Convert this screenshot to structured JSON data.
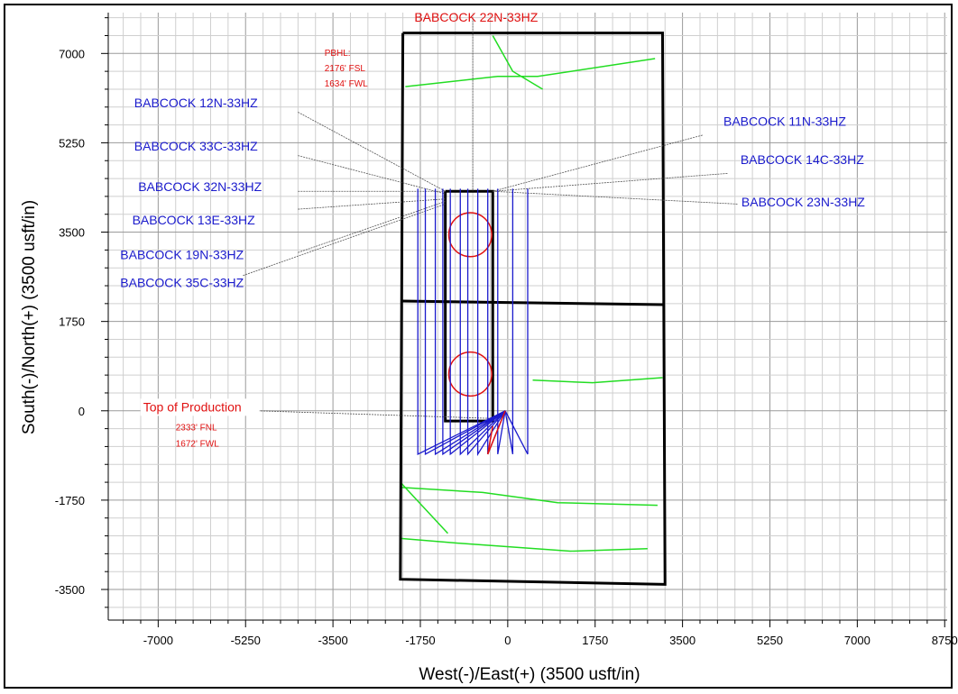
{
  "chart_data": {
    "type": "scatter",
    "xlabel": "West(-)/East(+) (3500 usft/in)",
    "ylabel": "South(-)/North(+) (3500 usft/in)",
    "xlim": [
      -8000,
      8800
    ],
    "ylim": [
      -4100,
      7800
    ],
    "x_ticks": [
      -7000,
      -5250,
      -3500,
      -1750,
      0,
      1750,
      3500,
      5250,
      7000,
      8750
    ],
    "y_ticks": [
      -3500,
      -1750,
      0,
      1750,
      3500,
      5250,
      7000
    ],
    "grid": true,
    "colors": {
      "wells": "#1a1acc",
      "annotation": "#e01010",
      "lease_lines": "#22dd22",
      "boundary": "#000000"
    },
    "top_label": "BABCOCK 22N-33HZ",
    "pbhl_notes": [
      "PBHL:",
      "2176' FSL",
      "1634' FWL"
    ],
    "production_label": "Top of Production",
    "production_notes": [
      "2333' FNL",
      "1672' FWL"
    ],
    "well_labels_left": [
      {
        "name": "BABCOCK 12N-33HZ",
        "x": -7480,
        "y": 5950
      },
      {
        "name": "BABCOCK 33C-33HZ",
        "x": -7480,
        "y": 5100
      },
      {
        "name": "BABCOCK 32N-33HZ",
        "x": -7400,
        "y": 4300
      },
      {
        "name": "BABCOCK 13E-33HZ",
        "x": -7520,
        "y": 3650
      },
      {
        "name": "BABCOCK 19N-33HZ",
        "x": -7760,
        "y": 2970
      },
      {
        "name": "BABCOCK 35C-33HZ",
        "x": -7760,
        "y": 2420
      }
    ],
    "well_labels_right": [
      {
        "name": "BABCOCK 11N-33HZ",
        "x": 4320,
        "y": 5580
      },
      {
        "name": "BABCOCK 14C-33HZ",
        "x": 4660,
        "y": 4830
      },
      {
        "name": "BABCOCK 23N-33HZ",
        "x": 4680,
        "y": 4000
      }
    ],
    "top_label_pos": {
      "x": -1870,
      "y": 7620
    },
    "pbhl_pos": {
      "x": -3670,
      "y": 6950
    },
    "production_label_pos": {
      "x": -7300,
      "y": -10
    },
    "production_notes_pos": {
      "x": -6650,
      "y": -380
    },
    "boundary_polygons": [
      [
        [
          -2100,
          7400
        ],
        [
          3100,
          7400
        ],
        [
          3150,
          -3400
        ],
        [
          -2150,
          -3300
        ],
        [
          -2100,
          7400
        ]
      ],
      [
        [
          -2130,
          2150
        ],
        [
          3120,
          2080
        ]
      ]
    ],
    "unit_rect": [
      [
        -1250,
        4300
      ],
      [
        -300,
        4300
      ],
      [
        -300,
        -200
      ],
      [
        -1250,
        -200
      ],
      [
        -1250,
        4300
      ]
    ],
    "target_circles": [
      {
        "x": -750,
        "y": 3450,
        "r": 430
      },
      {
        "x": -750,
        "y": 720,
        "r": 430
      }
    ],
    "surface_pad": {
      "x": -50,
      "y": 0
    },
    "lateral_x": [
      -1800,
      -1650,
      -1450,
      -1300,
      -1150,
      -950,
      -800,
      -600,
      -400,
      -200,
      100,
      400
    ],
    "lateral_top_y": 4350,
    "lateral_toe_y": -850,
    "lease_lines": [
      [
        [
          -2050,
          6350
        ],
        [
          -200,
          6550
        ],
        [
          600,
          6550
        ],
        [
          2950,
          6900
        ]
      ],
      [
        [
          -2150,
          -1500
        ],
        [
          -500,
          -1600
        ],
        [
          1000,
          -1800
        ],
        [
          3000,
          -1850
        ]
      ],
      [
        [
          -2150,
          -2500
        ],
        [
          -900,
          -2600
        ],
        [
          1250,
          -2750
        ],
        [
          2800,
          -2700
        ]
      ],
      [
        [
          500,
          600
        ],
        [
          1700,
          550
        ],
        [
          3100,
          650
        ]
      ],
      [
        [
          -300,
          7350
        ],
        [
          100,
          6650
        ],
        [
          700,
          6300
        ]
      ],
      [
        [
          -2150,
          -1400
        ],
        [
          -1200,
          -2400
        ]
      ]
    ],
    "callout_lines": [
      {
        "from": [
          -4200,
          5850
        ],
        "to": [
          -1250,
          4300
        ]
      },
      {
        "from": [
          -4200,
          5000
        ],
        "to": [
          -1250,
          4250
        ]
      },
      {
        "from": [
          -4200,
          4300
        ],
        "to": [
          -1250,
          4300
        ]
      },
      {
        "from": [
          -4200,
          3950
        ],
        "to": [
          -1250,
          4150
        ]
      },
      {
        "from": [
          -4200,
          3100
        ],
        "to": [
          -1250,
          4100
        ]
      },
      {
        "from": [
          -5300,
          2650
        ],
        "to": [
          -1250,
          4050
        ]
      },
      {
        "from": [
          3900,
          5400
        ],
        "to": [
          -300,
          4300
        ]
      },
      {
        "from": [
          4400,
          4650
        ],
        "to": [
          -300,
          4300
        ]
      },
      {
        "from": [
          4600,
          4050
        ],
        "to": [
          -300,
          4300
        ]
      },
      {
        "from": [
          -700,
          7700
        ],
        "to": [
          -700,
          4300
        ]
      },
      {
        "from": [
          -5000,
          0
        ],
        "to": [
          -300,
          -150
        ]
      }
    ]
  }
}
